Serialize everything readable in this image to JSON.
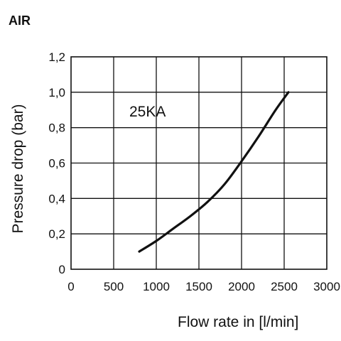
{
  "chart_data": {
    "type": "line",
    "title": "AIR",
    "xlabel": "Flow rate in [l/min]",
    "ylabel": "Pressure drop (bar)",
    "xlim": [
      0,
      3000
    ],
    "ylim": [
      0,
      1.2
    ],
    "x_ticks": [
      0,
      500,
      1000,
      1500,
      2000,
      2500,
      3000
    ],
    "x_tick_labels": [
      "0",
      "500",
      "1000",
      "1500",
      "2000",
      "2500",
      "3000"
    ],
    "y_ticks": [
      0,
      0.2,
      0.4,
      0.6,
      0.8,
      1.0,
      1.2
    ],
    "y_tick_labels": [
      "0",
      "0,2",
      "0,4",
      "0,6",
      "0,8",
      "1,0",
      "1,2"
    ],
    "grid": true,
    "annotation": "25KA",
    "series": [
      {
        "x": [
          800,
          1000,
          1200,
          1400,
          1600,
          1800,
          2000,
          2200,
          2400,
          2550
        ],
        "y": [
          0.1,
          0.16,
          0.23,
          0.3,
          0.38,
          0.48,
          0.61,
          0.75,
          0.9,
          1.0
        ]
      }
    ]
  }
}
